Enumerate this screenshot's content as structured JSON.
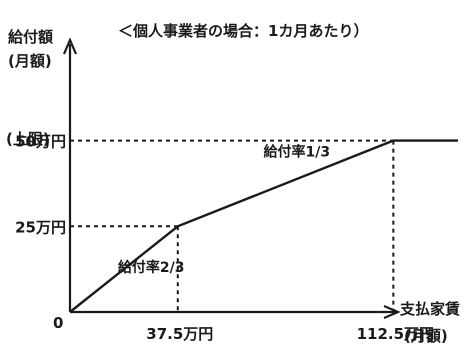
{
  "chart_data": {
    "type": "line",
    "title": "＜個人事業者の場合：1カ月あたり）",
    "ylabel_line1": "給付額",
    "ylabel_line2": "(月額)",
    "ylabel_limit": "(上限)",
    "xlabel_line1": "支払家賃",
    "xlabel_line2": "(月額)",
    "origin_label": "0",
    "x_ticks": [
      {
        "value": 37.5,
        "label": "37.5万円"
      },
      {
        "value": 112.5,
        "label": "112.5万円"
      }
    ],
    "y_ticks": [
      {
        "value": 25,
        "label": "25万円"
      },
      {
        "value": 50,
        "label": "50万円"
      }
    ],
    "xlim": [
      0,
      135
    ],
    "ylim": [
      0,
      70
    ],
    "series": [
      {
        "x": [
          0,
          37.5,
          112.5,
          135
        ],
        "y": [
          0,
          25,
          50,
          50
        ]
      }
    ],
    "annotations": [
      {
        "text": "給付率2/3",
        "x": 18.75,
        "y": 12.5
      },
      {
        "text": "給付率1/3",
        "x": 75,
        "y": 37.5
      }
    ]
  }
}
